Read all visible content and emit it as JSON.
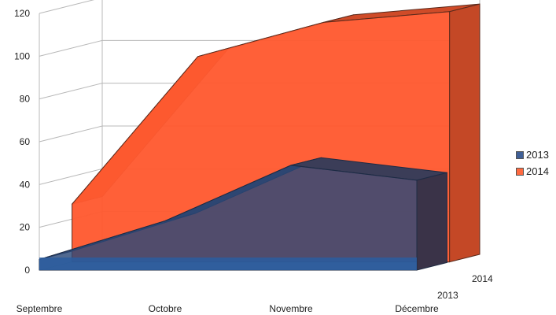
{
  "chart_data": {
    "type": "area",
    "title": "",
    "xlabel": "",
    "ylabel": "",
    "categories": [
      "Septembre",
      "Octobre",
      "Novembre",
      "Décembre"
    ],
    "series": [
      {
        "name": "2013",
        "values": [
          5,
          23,
          49,
          42
        ],
        "color": "#2f4d7a"
      },
      {
        "name": "2014",
        "values": [
          27,
          96,
          112,
          117
        ],
        "color": "#ff5a30"
      }
    ],
    "ylim": [
      0,
      120
    ],
    "yticks": [
      "0",
      "20",
      "40",
      "60",
      "80",
      "100",
      "120"
    ],
    "grid": true,
    "three_d": true,
    "legend": {
      "position": "right",
      "entries": [
        "2013",
        "2014"
      ]
    },
    "depth_labels": [
      "2014",
      "2013"
    ]
  }
}
